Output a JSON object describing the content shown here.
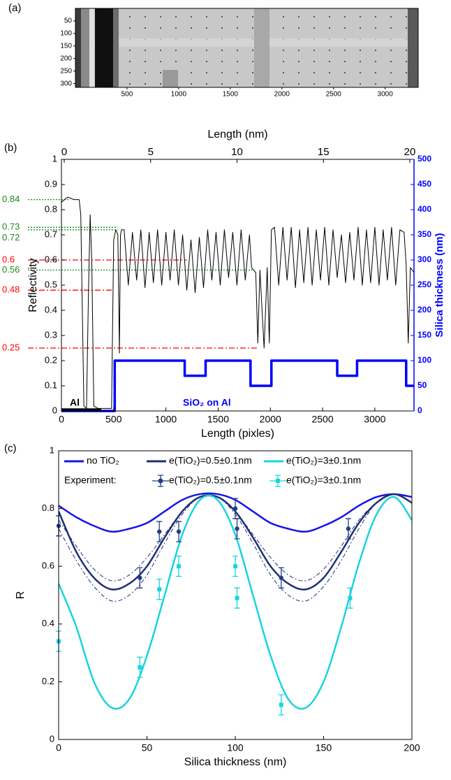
{
  "chart_data": [
    {
      "type": "image",
      "panel_label": "(a)",
      "xlim": [
        0,
        3320
      ],
      "ylim": [
        0,
        315
      ],
      "xticks": [
        500,
        1000,
        1500,
        2000,
        2500,
        3000
      ],
      "yticks": [
        50,
        100,
        150,
        200,
        250,
        300
      ]
    },
    {
      "type": "line",
      "panel_label": "(b)",
      "x2label": "Length (nm)",
      "xlabel": "Length (pixles)",
      "ylabel": "Reflectivity",
      "y2label": "Silica thickness (nm)",
      "xlim": [
        0,
        3375
      ],
      "x2lim": [
        0,
        20
      ],
      "ylim": [
        0,
        1
      ],
      "y2lim": [
        0,
        500
      ],
      "xticks": [
        0,
        500,
        1000,
        1500,
        2000,
        2500,
        3000
      ],
      "x2ticks": [
        0,
        5,
        10,
        15,
        20
      ],
      "yticks": [
        0,
        0.1,
        0.2,
        0.3,
        0.4,
        0.5,
        0.6,
        0.7,
        0.8,
        0.9,
        1
      ],
      "y2ticks": [
        0,
        50,
        100,
        150,
        200,
        250,
        300,
        350,
        400,
        450,
        500
      ],
      "y2color": "#0000ff",
      "series": [
        {
          "color": "#000000",
          "x": [
            0,
            60,
            120,
            170,
            185,
            200,
            215,
            240,
            260,
            275,
            290,
            310,
            350,
            480,
            500,
            520,
            540,
            555,
            565,
            575,
            600,
            640,
            680,
            720,
            760,
            800,
            840,
            880,
            920,
            960,
            1000,
            1040,
            1080,
            1120,
            1160,
            1200,
            1240,
            1280,
            1320,
            1360,
            1400,
            1440,
            1480,
            1520,
            1560,
            1600,
            1640,
            1680,
            1720,
            1760,
            1800,
            1820,
            1860,
            1880,
            1900,
            1940,
            1970,
            1990,
            2010,
            2040,
            2080,
            2120,
            2160,
            2200,
            2240,
            2280,
            2320,
            2360,
            2400,
            2440,
            2480,
            2520,
            2560,
            2600,
            2640,
            2680,
            2720,
            2760,
            2800,
            2840,
            2880,
            2920,
            2960,
            3000,
            3040,
            3080,
            3120,
            3160,
            3200,
            3240,
            3280,
            3300,
            3320,
            3340,
            3375
          ],
          "values": [
            0.83,
            0.85,
            0.84,
            0.84,
            0.78,
            0.4,
            0.02,
            0.01,
            0.5,
            0.78,
            0.6,
            0.02,
            0.01,
            0.01,
            0.68,
            0.72,
            0.7,
            0.23,
            0.7,
            0.72,
            0.72,
            0.5,
            0.71,
            0.52,
            0.72,
            0.49,
            0.71,
            0.51,
            0.72,
            0.5,
            0.71,
            0.52,
            0.72,
            0.5,
            0.7,
            0.48,
            0.68,
            0.47,
            0.69,
            0.49,
            0.72,
            0.52,
            0.71,
            0.5,
            0.72,
            0.53,
            0.71,
            0.5,
            0.72,
            0.52,
            0.7,
            0.57,
            0.55,
            0.27,
            0.56,
            0.25,
            0.57,
            0.27,
            0.72,
            0.73,
            0.5,
            0.73,
            0.52,
            0.73,
            0.49,
            0.72,
            0.51,
            0.73,
            0.5,
            0.72,
            0.52,
            0.73,
            0.5,
            0.72,
            0.53,
            0.7,
            0.51,
            0.71,
            0.52,
            0.73,
            0.5,
            0.72,
            0.51,
            0.73,
            0.5,
            0.72,
            0.52,
            0.73,
            0.5,
            0.72,
            0.71,
            0.58,
            0.27,
            0.57,
            0.55
          ]
        },
        {
          "color": "#0000ff",
          "axis": "y2",
          "x": [
            0,
            510,
            510,
            1180,
            1180,
            1380,
            1380,
            1810,
            1810,
            2010,
            2010,
            2640,
            2640,
            2830,
            2830,
            3300,
            3300,
            3375
          ],
          "values": [
            0,
            0,
            100,
            100,
            70,
            70,
            100,
            100,
            50,
            50,
            100,
            100,
            70,
            70,
            100,
            100,
            50,
            50
          ]
        }
      ],
      "al_bar": {
        "color": "#000000",
        "x": [
          0,
          380
        ],
        "values": [
          0.005,
          0.005
        ]
      },
      "annotations": [
        "Al",
        "SiO₂ on Al"
      ],
      "reference_lines": [
        {
          "value": 0.84,
          "label": "0.84",
          "x_end": 80,
          "color": "#1a8a1a"
        },
        {
          "value": 0.73,
          "label": "0.73",
          "x_end": 540,
          "color": "#1a8a1a"
        },
        {
          "value": 0.72,
          "label": "0.72",
          "x_end": 540,
          "color": "#1a8a1a"
        },
        {
          "value": 0.56,
          "label": "0.56",
          "x_end": 1830,
          "color": "#1a8a1a"
        },
        {
          "value": 0.6,
          "label": "0.6",
          "x_end": 1200,
          "color": "#ff0000"
        },
        {
          "value": 0.48,
          "label": "0.48",
          "x_end": 500,
          "color": "#ff0000"
        },
        {
          "value": 0.25,
          "label": "0.25",
          "x_end": 1870,
          "color": "#ff0000"
        }
      ]
    },
    {
      "type": "line",
      "panel_label": "(c)",
      "xlabel": "Silica thickness (nm)",
      "ylabel": "R",
      "xlim": [
        0,
        200
      ],
      "ylim": [
        0,
        1
      ],
      "xticks": [
        0,
        50,
        100,
        150,
        200
      ],
      "yticks": [
        0,
        0.2,
        0.4,
        0.6,
        0.8,
        1
      ],
      "series": [
        {
          "name": "no TiO₂",
          "color": "#1515e6",
          "x": [
            0,
            10,
            20,
            30,
            40,
            50,
            60,
            70,
            80,
            90,
            100,
            110,
            120,
            130,
            140,
            150,
            160,
            170,
            180,
            190,
            200
          ],
          "values": [
            0.81,
            0.77,
            0.74,
            0.72,
            0.73,
            0.75,
            0.79,
            0.83,
            0.85,
            0.85,
            0.83,
            0.79,
            0.75,
            0.73,
            0.72,
            0.74,
            0.77,
            0.81,
            0.84,
            0.85,
            0.84
          ]
        },
        {
          "name": "e(TiO₂)=0.5±0.1nm",
          "color": "#1f2f78",
          "x": [
            0,
            10,
            20,
            30,
            40,
            50,
            60,
            70,
            80,
            90,
            100,
            110,
            120,
            130,
            140,
            150,
            160,
            170,
            180,
            190,
            200
          ],
          "values": [
            0.79,
            0.65,
            0.56,
            0.52,
            0.54,
            0.6,
            0.7,
            0.79,
            0.84,
            0.84,
            0.79,
            0.7,
            0.6,
            0.54,
            0.52,
            0.56,
            0.65,
            0.75,
            0.82,
            0.85,
            0.82
          ]
        },
        {
          "name": "e(TiO₂)=3±0.1nm",
          "color": "#19d3e0",
          "x": [
            0,
            10,
            20,
            30,
            40,
            50,
            60,
            70,
            80,
            90,
            100,
            110,
            120,
            130,
            140,
            150,
            160,
            170,
            180,
            190,
            200
          ],
          "values": [
            0.54,
            0.39,
            0.2,
            0.11,
            0.14,
            0.29,
            0.5,
            0.71,
            0.83,
            0.83,
            0.71,
            0.5,
            0.29,
            0.14,
            0.11,
            0.2,
            0.39,
            0.61,
            0.78,
            0.84,
            0.76
          ]
        }
      ],
      "tolerance_lines": [
        {
          "color": "#1f2f78",
          "x": [
            0,
            10,
            20,
            30,
            40,
            50,
            60,
            70,
            80,
            90,
            100,
            110,
            120,
            130,
            140,
            150,
            160,
            170,
            180,
            190,
            200
          ],
          "values": [
            0.76,
            0.67,
            0.59,
            0.55,
            0.57,
            0.63,
            0.71,
            0.79,
            0.84,
            0.84,
            0.79,
            0.71,
            0.63,
            0.57,
            0.55,
            0.59,
            0.67,
            0.76,
            0.82,
            0.85,
            0.82
          ]
        },
        {
          "color": "#1f2f78",
          "x": [
            0,
            10,
            20,
            30,
            40,
            50,
            60,
            70,
            80,
            90,
            100,
            110,
            120,
            130,
            140,
            150,
            160,
            170,
            180,
            190,
            200
          ],
          "values": [
            0.73,
            0.62,
            0.53,
            0.48,
            0.5,
            0.57,
            0.68,
            0.78,
            0.84,
            0.84,
            0.78,
            0.68,
            0.57,
            0.5,
            0.48,
            0.53,
            0.62,
            0.73,
            0.82,
            0.85,
            0.82
          ]
        }
      ],
      "experiment_label": "Experiment:",
      "experiments": [
        {
          "name": "e(TiO₂)=0.5±0.1nm",
          "color": "#1f3f8a",
          "marker": "circle",
          "x": [
            0,
            46,
            57,
            68,
            100,
            101,
            126,
            164
          ],
          "values": [
            0.74,
            0.56,
            0.72,
            0.72,
            0.8,
            0.73,
            0.56,
            0.73
          ],
          "errors": [
            0.035,
            0.035,
            0.035,
            0.035,
            0.035,
            0.035,
            0.035,
            0.035
          ]
        },
        {
          "name": "e(TiO₂)=3±0.1nm",
          "color": "#19d3e0",
          "marker": "square",
          "x": [
            0,
            46,
            57,
            68,
            100,
            101,
            126,
            165
          ],
          "values": [
            0.34,
            0.25,
            0.52,
            0.6,
            0.6,
            0.49,
            0.12,
            0.49
          ],
          "errors": [
            0.035,
            0.035,
            0.035,
            0.035,
            0.035,
            0.035,
            0.035,
            0.035
          ]
        }
      ]
    }
  ]
}
